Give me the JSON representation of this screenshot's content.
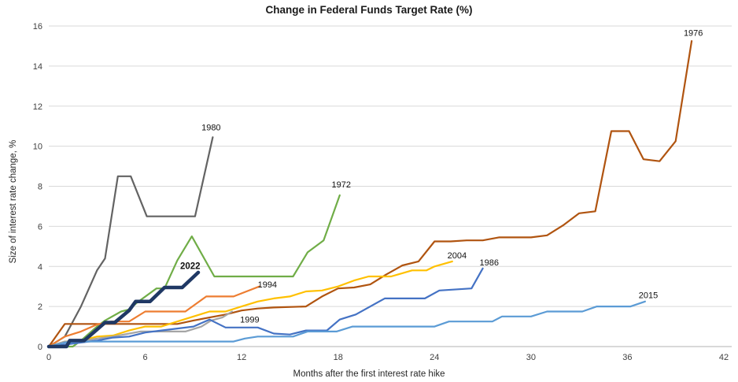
{
  "page": {
    "title": "Change in Federal Funds Target Rate (%)"
  },
  "colors": {
    "background": "#ffffff",
    "gridline": "#d9d9d9",
    "axis_line": "#b3b3b3",
    "tick_text": "#404040",
    "label_text": "#111111"
  },
  "chart_data": {
    "type": "line",
    "title": "Change in Federal Funds Target Rate (%)",
    "xlabel": "Months after the first interest rate hike",
    "ylabel": "Size of interest rate change, %",
    "xlim": [
      0,
      42
    ],
    "ylim": [
      0,
      16
    ],
    "x_ticks": [
      0,
      6,
      12,
      18,
      24,
      30,
      36,
      42
    ],
    "y_ticks": [
      0,
      2,
      4,
      6,
      8,
      10,
      12,
      14,
      16
    ],
    "grid": "horizontal-only",
    "legend": "end-of-line-labels",
    "series": [
      {
        "name": "1980",
        "color": "#636363",
        "width": 2.2,
        "label_bold": false,
        "label_pos": [
          10.1,
          10.8
        ],
        "points": [
          [
            0,
            0
          ],
          [
            1,
            0.5
          ],
          [
            2,
            2.0
          ],
          [
            3,
            3.8
          ],
          [
            3.5,
            4.4
          ],
          [
            4.3,
            8.5
          ],
          [
            5.1,
            8.5
          ],
          [
            6.1,
            6.5
          ],
          [
            9.1,
            6.5
          ],
          [
            10.2,
            10.45
          ]
        ]
      },
      {
        "name": "1972",
        "color": "#70ad47",
        "width": 2.2,
        "label_bold": false,
        "label_pos": [
          18.2,
          7.95
        ],
        "points": [
          [
            0,
            0
          ],
          [
            1.5,
            0
          ],
          [
            2,
            0.3
          ],
          [
            3,
            1.0
          ],
          [
            3.5,
            1.3
          ],
          [
            4.5,
            1.75
          ],
          [
            5,
            1.85
          ],
          [
            5.5,
            2.2
          ],
          [
            6.7,
            2.9
          ],
          [
            7.2,
            2.9
          ],
          [
            8,
            4.3
          ],
          [
            8.9,
            5.5
          ],
          [
            10.3,
            3.5
          ],
          [
            15.2,
            3.5
          ],
          [
            16.1,
            4.7
          ],
          [
            17.1,
            5.3
          ],
          [
            18.1,
            7.55
          ]
        ]
      },
      {
        "name": "1976",
        "color": "#b05410",
        "width": 2.2,
        "label_bold": false,
        "label_pos": [
          40.1,
          15.5
        ],
        "points": [
          [
            0,
            0
          ],
          [
            1,
            1.13
          ],
          [
            8,
            1.13
          ],
          [
            9,
            1.3
          ],
          [
            10,
            1.45
          ],
          [
            11,
            1.6
          ],
          [
            12,
            1.8
          ],
          [
            13,
            1.9
          ],
          [
            14,
            1.95
          ],
          [
            16,
            2.0
          ],
          [
            17,
            2.5
          ],
          [
            18,
            2.9
          ],
          [
            19,
            2.95
          ],
          [
            20,
            3.1
          ],
          [
            21,
            3.6
          ],
          [
            22,
            4.05
          ],
          [
            23,
            4.25
          ],
          [
            24,
            5.25
          ],
          [
            25,
            5.25
          ],
          [
            26,
            5.3
          ],
          [
            27,
            5.3
          ],
          [
            28,
            5.45
          ],
          [
            30,
            5.45
          ],
          [
            31,
            5.55
          ],
          [
            32,
            6.05
          ],
          [
            33,
            6.65
          ],
          [
            34,
            6.75
          ],
          [
            35,
            10.75
          ],
          [
            36.1,
            10.75
          ],
          [
            37,
            9.35
          ],
          [
            38,
            9.25
          ],
          [
            39,
            10.25
          ],
          [
            40,
            15.25
          ]
        ]
      },
      {
        "name": "1994",
        "color": "#ed7d31",
        "width": 2.2,
        "label_bold": false,
        "label_pos": [
          13.6,
          2.95
        ],
        "points": [
          [
            0,
            0
          ],
          [
            1,
            0.5
          ],
          [
            2,
            0.75
          ],
          [
            3,
            1.1
          ],
          [
            3.9,
            1.25
          ],
          [
            5,
            1.25
          ],
          [
            6,
            1.75
          ],
          [
            8.5,
            1.75
          ],
          [
            9.8,
            2.5
          ],
          [
            11.5,
            2.5
          ],
          [
            12.3,
            2.75
          ],
          [
            13.1,
            3.0
          ]
        ]
      },
      {
        "name": "2004",
        "color": "#ffc000",
        "width": 2.2,
        "label_bold": false,
        "label_pos": [
          25.4,
          4.4
        ],
        "points": [
          [
            0,
            0
          ],
          [
            1,
            0.25
          ],
          [
            2,
            0.3
          ],
          [
            3,
            0.5
          ],
          [
            4,
            0.55
          ],
          [
            5,
            0.8
          ],
          [
            6,
            1.0
          ],
          [
            7,
            1.0
          ],
          [
            8,
            1.25
          ],
          [
            9,
            1.5
          ],
          [
            10,
            1.75
          ],
          [
            11,
            1.75
          ],
          [
            12,
            2.0
          ],
          [
            13,
            2.25
          ],
          [
            14,
            2.4
          ],
          [
            15,
            2.5
          ],
          [
            16,
            2.75
          ],
          [
            17,
            2.8
          ],
          [
            18,
            3.0
          ],
          [
            19,
            3.3
          ],
          [
            19.9,
            3.5
          ],
          [
            21.3,
            3.5
          ],
          [
            22.6,
            3.8
          ],
          [
            23.5,
            3.8
          ],
          [
            24,
            4.0
          ],
          [
            25.1,
            4.25
          ]
        ]
      },
      {
        "name": "1999",
        "color": "#a5a5a5",
        "width": 2.2,
        "label_bold": false,
        "label_pos": [
          12.5,
          1.2
        ],
        "points": [
          [
            0,
            0
          ],
          [
            1,
            0.25
          ],
          [
            2,
            0.25
          ],
          [
            3,
            0.4
          ],
          [
            4,
            0.5
          ],
          [
            5,
            0.65
          ],
          [
            5.7,
            0.75
          ],
          [
            8.5,
            0.75
          ],
          [
            9.5,
            1.0
          ],
          [
            10.1,
            1.3
          ],
          [
            10.8,
            1.45
          ],
          [
            11.4,
            1.75
          ]
        ]
      },
      {
        "name": "1986",
        "color": "#4472c4",
        "width": 2.2,
        "label_bold": false,
        "label_pos": [
          27.4,
          4.05
        ],
        "points": [
          [
            0,
            0
          ],
          [
            1,
            0.1
          ],
          [
            2,
            0.2
          ],
          [
            3,
            0.3
          ],
          [
            4,
            0.45
          ],
          [
            5,
            0.5
          ],
          [
            6,
            0.7
          ],
          [
            7,
            0.8
          ],
          [
            8,
            0.9
          ],
          [
            9,
            1.0
          ],
          [
            10,
            1.35
          ],
          [
            11,
            0.95
          ],
          [
            13,
            0.95
          ],
          [
            14,
            0.65
          ],
          [
            15,
            0.6
          ],
          [
            16,
            0.8
          ],
          [
            17.3,
            0.8
          ],
          [
            18.1,
            1.35
          ],
          [
            19.1,
            1.6
          ],
          [
            20.9,
            2.4
          ],
          [
            23.4,
            2.4
          ],
          [
            24.3,
            2.8
          ],
          [
            26.3,
            2.9
          ],
          [
            27,
            3.9
          ]
        ]
      },
      {
        "name": "2015",
        "color": "#5b9bd5",
        "width": 2.2,
        "label_bold": false,
        "label_pos": [
          37.3,
          2.42
        ],
        "points": [
          [
            0,
            0
          ],
          [
            1,
            0.2
          ],
          [
            2,
            0.25
          ],
          [
            11.5,
            0.25
          ],
          [
            12.2,
            0.4
          ],
          [
            13,
            0.5
          ],
          [
            15.2,
            0.5
          ],
          [
            16.1,
            0.75
          ],
          [
            17.9,
            0.75
          ],
          [
            18.9,
            1.0
          ],
          [
            24,
            1.0
          ],
          [
            24.9,
            1.25
          ],
          [
            27.6,
            1.25
          ],
          [
            28.2,
            1.5
          ],
          [
            30,
            1.5
          ],
          [
            31,
            1.75
          ],
          [
            33.2,
            1.75
          ],
          [
            34.1,
            2.0
          ],
          [
            36.2,
            2.0
          ],
          [
            37.1,
            2.25
          ]
        ]
      },
      {
        "name": "2022",
        "color": "#1f3864",
        "width": 4.5,
        "label_bold": true,
        "label_pos": [
          8.8,
          3.88
        ],
        "points": [
          [
            0,
            0
          ],
          [
            1.1,
            0
          ],
          [
            1.3,
            0.3
          ],
          [
            2.2,
            0.3
          ],
          [
            3,
            0.85
          ],
          [
            3.5,
            1.2
          ],
          [
            4.1,
            1.2
          ],
          [
            5,
            1.8
          ],
          [
            5.4,
            2.25
          ],
          [
            6.3,
            2.25
          ],
          [
            7.2,
            2.95
          ],
          [
            8.3,
            2.95
          ],
          [
            9.3,
            3.7
          ]
        ]
      }
    ]
  }
}
